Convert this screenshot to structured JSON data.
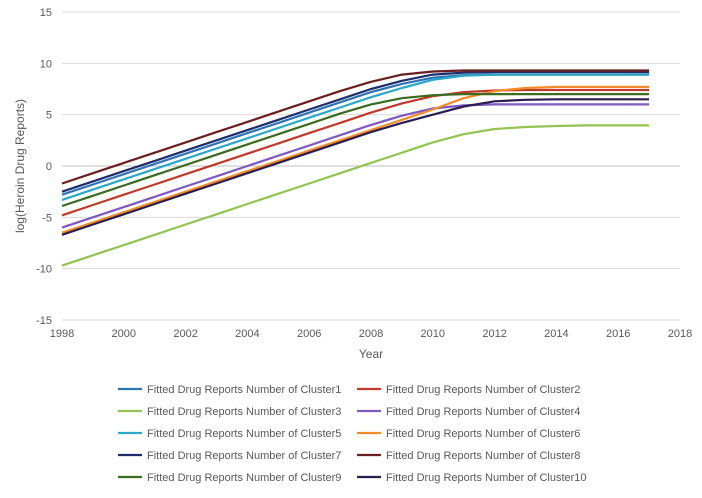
{
  "chart_data": {
    "type": "line",
    "title": "",
    "xlabel": "Year",
    "ylabel": "log(Heroin Drug Reports)",
    "xlim": [
      1998,
      2018
    ],
    "ylim": [
      -15,
      15
    ],
    "x_ticks": [
      1998,
      2000,
      2002,
      2004,
      2006,
      2008,
      2010,
      2012,
      2014,
      2016,
      2018
    ],
    "y_ticks": [
      -15,
      -10,
      -5,
      0,
      5,
      10,
      15
    ],
    "grid": "horizontal",
    "legend_position": "bottom",
    "x": [
      1998,
      1999,
      2000,
      2001,
      2002,
      2003,
      2004,
      2005,
      2006,
      2007,
      2008,
      2009,
      2010,
      2011,
      2012,
      2013,
      2014,
      2015,
      2016,
      2017
    ],
    "series": [
      {
        "name": "Fitted Drug Reports Number of Cluster1",
        "color": "#2E75B6",
        "values": [
          -2.8,
          -1.8,
          -0.8,
          0.2,
          1.2,
          2.2,
          3.2,
          4.2,
          5.2,
          6.2,
          7.2,
          8.0,
          8.6,
          8.85,
          8.9,
          8.9,
          8.9,
          8.9,
          8.9,
          8.9
        ]
      },
      {
        "name": "Fitted Drug Reports Number of Cluster2",
        "color": "#C0392B",
        "values": [
          -4.8,
          -3.8,
          -2.8,
          -1.8,
          -0.8,
          0.2,
          1.2,
          2.2,
          3.2,
          4.2,
          5.2,
          6.1,
          6.8,
          7.2,
          7.35,
          7.4,
          7.4,
          7.4,
          7.4,
          7.4
        ]
      },
      {
        "name": "Fitted Drug Reports Number of Cluster3",
        "color": "#92C353",
        "values": [
          -9.7,
          -8.7,
          -7.7,
          -6.7,
          -5.7,
          -4.7,
          -3.7,
          -2.7,
          -1.7,
          -0.7,
          0.3,
          1.3,
          2.3,
          3.1,
          3.6,
          3.8,
          3.9,
          3.95,
          3.95,
          3.95
        ]
      },
      {
        "name": "Fitted Drug Reports Number of Cluster4",
        "color": "#7E57C2",
        "values": [
          -6.0,
          -5.0,
          -4.0,
          -3.0,
          -2.0,
          -1.0,
          0.0,
          1.0,
          2.0,
          3.0,
          4.0,
          4.9,
          5.6,
          5.9,
          6.0,
          6.0,
          6.0,
          6.0,
          6.0,
          6.0
        ]
      },
      {
        "name": "Fitted Drug Reports Number of Cluster5",
        "color": "#2AA7C9",
        "values": [
          -3.3,
          -2.3,
          -1.3,
          -0.3,
          0.7,
          1.7,
          2.7,
          3.7,
          4.7,
          5.7,
          6.7,
          7.6,
          8.4,
          8.8,
          8.9,
          8.9,
          8.9,
          8.9,
          8.9,
          8.9
        ]
      },
      {
        "name": "Fitted Drug Reports Number of Cluster6",
        "color": "#F28C28",
        "values": [
          -6.5,
          -5.5,
          -4.5,
          -3.5,
          -2.5,
          -1.5,
          -0.5,
          0.5,
          1.5,
          2.5,
          3.5,
          4.5,
          5.5,
          6.6,
          7.3,
          7.6,
          7.7,
          7.7,
          7.7,
          7.7
        ]
      },
      {
        "name": "Fitted Drug Reports Number of Cluster7",
        "color": "#1F2D6B",
        "values": [
          -2.5,
          -1.5,
          -0.5,
          0.5,
          1.5,
          2.5,
          3.5,
          4.5,
          5.5,
          6.5,
          7.5,
          8.3,
          8.9,
          9.1,
          9.15,
          9.15,
          9.15,
          9.15,
          9.15,
          9.15
        ]
      },
      {
        "name": "Fitted Drug Reports Number of Cluster8",
        "color": "#6B1E1E",
        "values": [
          -1.7,
          -0.7,
          0.3,
          1.3,
          2.3,
          3.3,
          4.3,
          5.3,
          6.3,
          7.3,
          8.2,
          8.9,
          9.2,
          9.3,
          9.3,
          9.3,
          9.3,
          9.3,
          9.3,
          9.3
        ]
      },
      {
        "name": "Fitted Drug Reports Number of Cluster9",
        "color": "#3A6B1F",
        "values": [
          -3.9,
          -2.9,
          -1.9,
          -0.9,
          0.1,
          1.1,
          2.1,
          3.1,
          4.1,
          5.1,
          6.0,
          6.6,
          6.9,
          7.0,
          7.0,
          7.0,
          7.0,
          7.0,
          7.0,
          7.0
        ]
      },
      {
        "name": "Fitted Drug Reports Number of Cluster10",
        "color": "#2A1D4F",
        "values": [
          -6.7,
          -5.7,
          -4.7,
          -3.7,
          -2.7,
          -1.7,
          -0.7,
          0.3,
          1.3,
          2.3,
          3.3,
          4.2,
          5.0,
          5.8,
          6.3,
          6.45,
          6.5,
          6.5,
          6.5,
          6.5
        ]
      }
    ]
  }
}
